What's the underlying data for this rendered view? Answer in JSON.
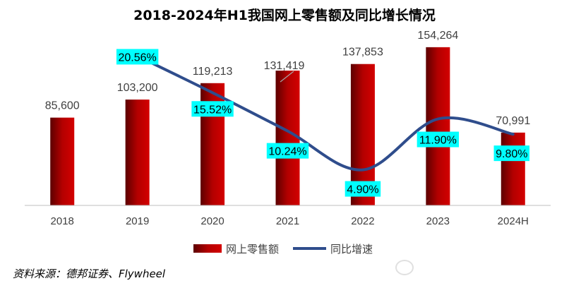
{
  "chart_data": {
    "type": "bar",
    "title": "2018-2024年H1我国网上零售额及同比增长情况",
    "categories": [
      "2018",
      "2019",
      "2020",
      "2021",
      "2022",
      "2023",
      "2024H"
    ],
    "series": [
      {
        "name": "网上零售额",
        "type": "bar",
        "values": [
          85600,
          103200,
          119213,
          131419,
          137853,
          154264,
          70991
        ],
        "labels": [
          "85,600",
          "103,200",
          "119,213",
          "131,419",
          "137,853",
          "154,264",
          "70,991"
        ],
        "color": "#a50000"
      },
      {
        "name": "同比增速",
        "type": "line",
        "values": [
          null,
          20.56,
          15.52,
          10.24,
          4.9,
          11.9,
          9.8
        ],
        "labels": [
          "",
          "20.56%",
          "15.52%",
          "10.24%",
          "4.90%",
          "11.90%",
          "9.80%"
        ],
        "color": "#2f4d8c"
      }
    ],
    "ylim": [
      0,
      170000
    ],
    "y2lim": [
      0,
      24
    ],
    "grid": false,
    "legend": "bottom",
    "label_highlight_color": "#00ffff"
  },
  "source": "资料来源：德邦证券、Flywheel"
}
